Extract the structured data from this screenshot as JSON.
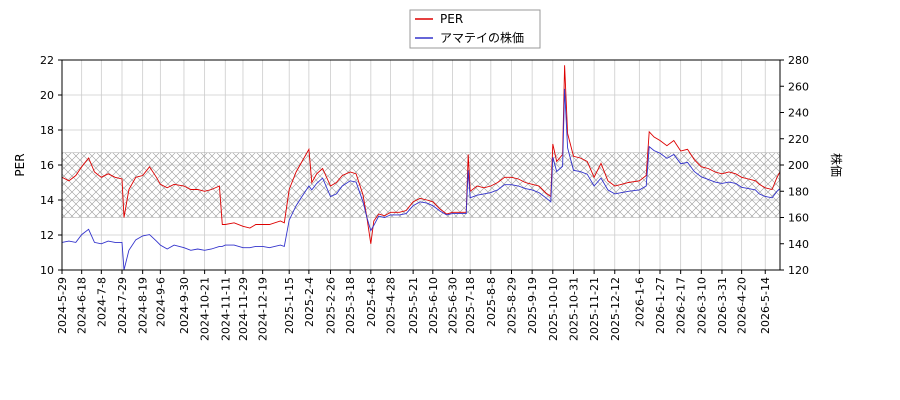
{
  "chart_data": {
    "type": "line",
    "ylabel_left": "PER",
    "ylabel_right": "株価",
    "ylim_left": [
      10,
      22
    ],
    "ylim_right": [
      120,
      280
    ],
    "yticks_left": [
      10,
      12,
      14,
      16,
      18,
      20,
      22
    ],
    "yticks_right": [
      120,
      140,
      160,
      180,
      200,
      220,
      240,
      260,
      280
    ],
    "x_start": "2024-5-29",
    "x_end": "2026-5-29",
    "xticks": [
      "2024-5-29",
      "2024-6-18",
      "2024-7-8",
      "2024-7-29",
      "2024-8-19",
      "2024-9-6",
      "2024-9-30",
      "2024-10-21",
      "2024-11-11",
      "2024-11-29",
      "2024-12-19",
      "2025-1-15",
      "2025-2-4",
      "2025-2-26",
      "2025-3-18",
      "2025-4-8",
      "2025-4-28",
      "2025-5-21",
      "2025-6-10",
      "2025-6-30",
      "2025-7-18",
      "2025-8-8",
      "2025-8-29",
      "2025-9-19",
      "2025-10-10",
      "2025-10-31",
      "2025-11-21",
      "2025-12-12",
      "2026-1-6",
      "2026-1-27",
      "2026-2-17",
      "2026-3-10",
      "2026-3-31",
      "2026-4-20",
      "2026-5-14"
    ],
    "grid": true,
    "legend_position": "top-center",
    "band": {
      "ymin": 13.0,
      "ymax": 16.7,
      "pattern": "cross-hatch"
    },
    "series": [
      {
        "name": "PER",
        "axis": "left",
        "color": "#dd0000",
        "points": [
          [
            "2024-5-29",
            15.3
          ],
          [
            "2024-6-5",
            15.1
          ],
          [
            "2024-6-12",
            15.4
          ],
          [
            "2024-6-18",
            15.9
          ],
          [
            "2024-6-25",
            16.4
          ],
          [
            "2024-7-1",
            15.6
          ],
          [
            "2024-7-8",
            15.3
          ],
          [
            "2024-7-15",
            15.5
          ],
          [
            "2024-7-22",
            15.3
          ],
          [
            "2024-7-29",
            15.2
          ],
          [
            "2024-7-31",
            13.0
          ],
          [
            "2024-8-5",
            14.6
          ],
          [
            "2024-8-12",
            15.3
          ],
          [
            "2024-8-19",
            15.4
          ],
          [
            "2024-8-26",
            15.9
          ],
          [
            "2024-9-2",
            15.3
          ],
          [
            "2024-9-6",
            14.9
          ],
          [
            "2024-9-13",
            14.7
          ],
          [
            "2024-9-20",
            14.9
          ],
          [
            "2024-9-30",
            14.8
          ],
          [
            "2024-10-7",
            14.6
          ],
          [
            "2024-10-14",
            14.6
          ],
          [
            "2024-10-21",
            14.5
          ],
          [
            "2024-10-28",
            14.6
          ],
          [
            "2024-11-5",
            14.8
          ],
          [
            "2024-11-8",
            12.6
          ],
          [
            "2024-11-11",
            12.6
          ],
          [
            "2024-11-20",
            12.7
          ],
          [
            "2024-11-29",
            12.5
          ],
          [
            "2024-12-6",
            12.4
          ],
          [
            "2024-12-12",
            12.6
          ],
          [
            "2024-12-19",
            12.6
          ],
          [
            "2024-12-26",
            12.6
          ],
          [
            "2025-1-6",
            12.8
          ],
          [
            "2025-1-10",
            12.7
          ],
          [
            "2025-1-15",
            14.6
          ],
          [
            "2025-1-22",
            15.6
          ],
          [
            "2025-1-28",
            16.2
          ],
          [
            "2025-2-4",
            16.9
          ],
          [
            "2025-2-7",
            15.0
          ],
          [
            "2025-2-12",
            15.5
          ],
          [
            "2025-2-18",
            15.8
          ],
          [
            "2025-2-26",
            14.8
          ],
          [
            "2025-3-4",
            15.0
          ],
          [
            "2025-3-10",
            15.4
          ],
          [
            "2025-3-18",
            15.6
          ],
          [
            "2025-3-24",
            15.5
          ],
          [
            "2025-3-31",
            14.3
          ],
          [
            "2025-4-4",
            13.0
          ],
          [
            "2025-4-8",
            11.5
          ],
          [
            "2025-4-11",
            12.8
          ],
          [
            "2025-4-16",
            13.2
          ],
          [
            "2025-4-22",
            13.1
          ],
          [
            "2025-4-28",
            13.3
          ],
          [
            "2025-5-7",
            13.3
          ],
          [
            "2025-5-14",
            13.4
          ],
          [
            "2025-5-21",
            13.9
          ],
          [
            "2025-5-28",
            14.1
          ],
          [
            "2025-6-4",
            14.0
          ],
          [
            "2025-6-10",
            13.9
          ],
          [
            "2025-6-17",
            13.5
          ],
          [
            "2025-6-24",
            13.2
          ],
          [
            "2025-6-30",
            13.3
          ],
          [
            "2025-7-7",
            13.3
          ],
          [
            "2025-7-14",
            13.3
          ],
          [
            "2025-7-16",
            16.6
          ],
          [
            "2025-7-18",
            14.5
          ],
          [
            "2025-7-25",
            14.8
          ],
          [
            "2025-8-1",
            14.7
          ],
          [
            "2025-8-8",
            14.8
          ],
          [
            "2025-8-15",
            15.0
          ],
          [
            "2025-8-22",
            15.3
          ],
          [
            "2025-8-29",
            15.3
          ],
          [
            "2025-9-5",
            15.2
          ],
          [
            "2025-9-12",
            15.0
          ],
          [
            "2025-9-19",
            14.9
          ],
          [
            "2025-9-26",
            14.8
          ],
          [
            "2025-10-3",
            14.4
          ],
          [
            "2025-10-8",
            14.2
          ],
          [
            "2025-10-10",
            17.2
          ],
          [
            "2025-10-14",
            16.2
          ],
          [
            "2025-10-20",
            16.6
          ],
          [
            "2025-10-22",
            21.7
          ],
          [
            "2025-10-25",
            17.8
          ],
          [
            "2025-10-31",
            16.5
          ],
          [
            "2025-11-7",
            16.4
          ],
          [
            "2025-11-14",
            16.2
          ],
          [
            "2025-11-21",
            15.3
          ],
          [
            "2025-11-28",
            16.1
          ],
          [
            "2025-12-5",
            15.1
          ],
          [
            "2025-12-12",
            14.8
          ],
          [
            "2025-12-19",
            14.9
          ],
          [
            "2025-12-26",
            15.0
          ],
          [
            "2026-1-6",
            15.1
          ],
          [
            "2026-1-13",
            15.4
          ],
          [
            "2026-1-16",
            17.9
          ],
          [
            "2026-1-21",
            17.6
          ],
          [
            "2026-1-27",
            17.4
          ],
          [
            "2026-2-3",
            17.1
          ],
          [
            "2026-2-10",
            17.4
          ],
          [
            "2026-2-17",
            16.8
          ],
          [
            "2026-2-24",
            16.9
          ],
          [
            "2026-3-3",
            16.3
          ],
          [
            "2026-3-10",
            15.9
          ],
          [
            "2026-3-17",
            15.8
          ],
          [
            "2026-3-24",
            15.6
          ],
          [
            "2026-3-31",
            15.5
          ],
          [
            "2026-4-7",
            15.6
          ],
          [
            "2026-4-14",
            15.5
          ],
          [
            "2026-4-20",
            15.3
          ],
          [
            "2026-4-27",
            15.2
          ],
          [
            "2026-5-4",
            15.1
          ],
          [
            "2026-5-8",
            14.9
          ],
          [
            "2026-5-14",
            14.7
          ],
          [
            "2026-5-21",
            14.6
          ],
          [
            "2026-5-26",
            15.3
          ],
          [
            "2026-5-29",
            15.6
          ]
        ]
      },
      {
        "name": "アマテイの株価",
        "axis": "right",
        "color": "#3333cc",
        "points": [
          [
            "2024-5-29",
            141
          ],
          [
            "2024-6-5",
            142
          ],
          [
            "2024-6-12",
            141
          ],
          [
            "2024-6-18",
            147
          ],
          [
            "2024-6-25",
            151
          ],
          [
            "2024-7-1",
            141
          ],
          [
            "2024-7-8",
            140
          ],
          [
            "2024-7-15",
            142
          ],
          [
            "2024-7-22",
            141
          ],
          [
            "2024-7-29",
            141
          ],
          [
            "2024-7-31",
            120
          ],
          [
            "2024-8-5",
            135
          ],
          [
            "2024-8-12",
            143
          ],
          [
            "2024-8-19",
            146
          ],
          [
            "2024-8-26",
            147
          ],
          [
            "2024-9-2",
            142
          ],
          [
            "2024-9-6",
            139
          ],
          [
            "2024-9-13",
            136
          ],
          [
            "2024-9-20",
            139
          ],
          [
            "2024-9-30",
            137
          ],
          [
            "2024-10-7",
            135
          ],
          [
            "2024-10-14",
            136
          ],
          [
            "2024-10-21",
            135
          ],
          [
            "2024-10-28",
            136
          ],
          [
            "2024-11-5",
            138
          ],
          [
            "2024-11-8",
            138
          ],
          [
            "2024-11-11",
            139
          ],
          [
            "2024-11-20",
            139
          ],
          [
            "2024-11-29",
            137
          ],
          [
            "2024-12-6",
            137
          ],
          [
            "2024-12-12",
            138
          ],
          [
            "2024-12-19",
            138
          ],
          [
            "2024-12-26",
            137
          ],
          [
            "2025-1-6",
            139
          ],
          [
            "2025-1-10",
            138
          ],
          [
            "2025-1-15",
            158
          ],
          [
            "2025-1-22",
            169
          ],
          [
            "2025-1-28",
            176
          ],
          [
            "2025-2-4",
            184
          ],
          [
            "2025-2-7",
            181
          ],
          [
            "2025-2-12",
            186
          ],
          [
            "2025-2-18",
            190
          ],
          [
            "2025-2-26",
            176
          ],
          [
            "2025-3-4",
            178
          ],
          [
            "2025-3-10",
            184
          ],
          [
            "2025-3-18",
            188
          ],
          [
            "2025-3-24",
            187
          ],
          [
            "2025-3-31",
            172
          ],
          [
            "2025-4-4",
            160
          ],
          [
            "2025-4-8",
            150
          ],
          [
            "2025-4-11",
            154
          ],
          [
            "2025-4-16",
            161
          ],
          [
            "2025-4-22",
            160
          ],
          [
            "2025-4-28",
            162
          ],
          [
            "2025-5-7",
            162
          ],
          [
            "2025-5-14",
            163
          ],
          [
            "2025-5-21",
            169
          ],
          [
            "2025-5-28",
            172
          ],
          [
            "2025-6-4",
            171
          ],
          [
            "2025-6-10",
            169
          ],
          [
            "2025-6-17",
            165
          ],
          [
            "2025-6-24",
            162
          ],
          [
            "2025-6-30",
            163
          ],
          [
            "2025-7-7",
            163
          ],
          [
            "2025-7-14",
            163
          ],
          [
            "2025-7-16",
            196
          ],
          [
            "2025-7-18",
            175
          ],
          [
            "2025-7-25",
            177
          ],
          [
            "2025-8-1",
            178
          ],
          [
            "2025-8-8",
            179
          ],
          [
            "2025-8-15",
            181
          ],
          [
            "2025-8-22",
            185
          ],
          [
            "2025-8-29",
            185
          ],
          [
            "2025-9-5",
            184
          ],
          [
            "2025-9-12",
            182
          ],
          [
            "2025-9-19",
            181
          ],
          [
            "2025-9-26",
            179
          ],
          [
            "2025-10-3",
            175
          ],
          [
            "2025-10-8",
            172
          ],
          [
            "2025-10-10",
            206
          ],
          [
            "2025-10-14",
            195
          ],
          [
            "2025-10-20",
            199
          ],
          [
            "2025-10-22",
            258
          ],
          [
            "2025-10-25",
            213
          ],
          [
            "2025-10-31",
            196
          ],
          [
            "2025-11-7",
            195
          ],
          [
            "2025-11-14",
            193
          ],
          [
            "2025-11-21",
            184
          ],
          [
            "2025-11-28",
            190
          ],
          [
            "2025-12-5",
            181
          ],
          [
            "2025-12-12",
            178
          ],
          [
            "2025-12-19",
            179
          ],
          [
            "2025-12-26",
            180
          ],
          [
            "2026-1-6",
            181
          ],
          [
            "2026-1-13",
            184
          ],
          [
            "2026-1-16",
            214
          ],
          [
            "2026-1-21",
            211
          ],
          [
            "2026-1-27",
            209
          ],
          [
            "2026-2-3",
            205
          ],
          [
            "2026-2-10",
            208
          ],
          [
            "2026-2-17",
            201
          ],
          [
            "2026-2-24",
            202
          ],
          [
            "2026-3-3",
            195
          ],
          [
            "2026-3-10",
            191
          ],
          [
            "2026-3-17",
            189
          ],
          [
            "2026-3-24",
            187
          ],
          [
            "2026-3-31",
            186
          ],
          [
            "2026-4-7",
            187
          ],
          [
            "2026-4-14",
            186
          ],
          [
            "2026-4-20",
            183
          ],
          [
            "2026-4-27",
            182
          ],
          [
            "2026-5-4",
            181
          ],
          [
            "2026-5-8",
            178
          ],
          [
            "2026-5-14",
            176
          ],
          [
            "2026-5-21",
            175
          ],
          [
            "2026-5-26",
            180
          ],
          [
            "2026-5-29",
            182
          ]
        ]
      }
    ]
  }
}
